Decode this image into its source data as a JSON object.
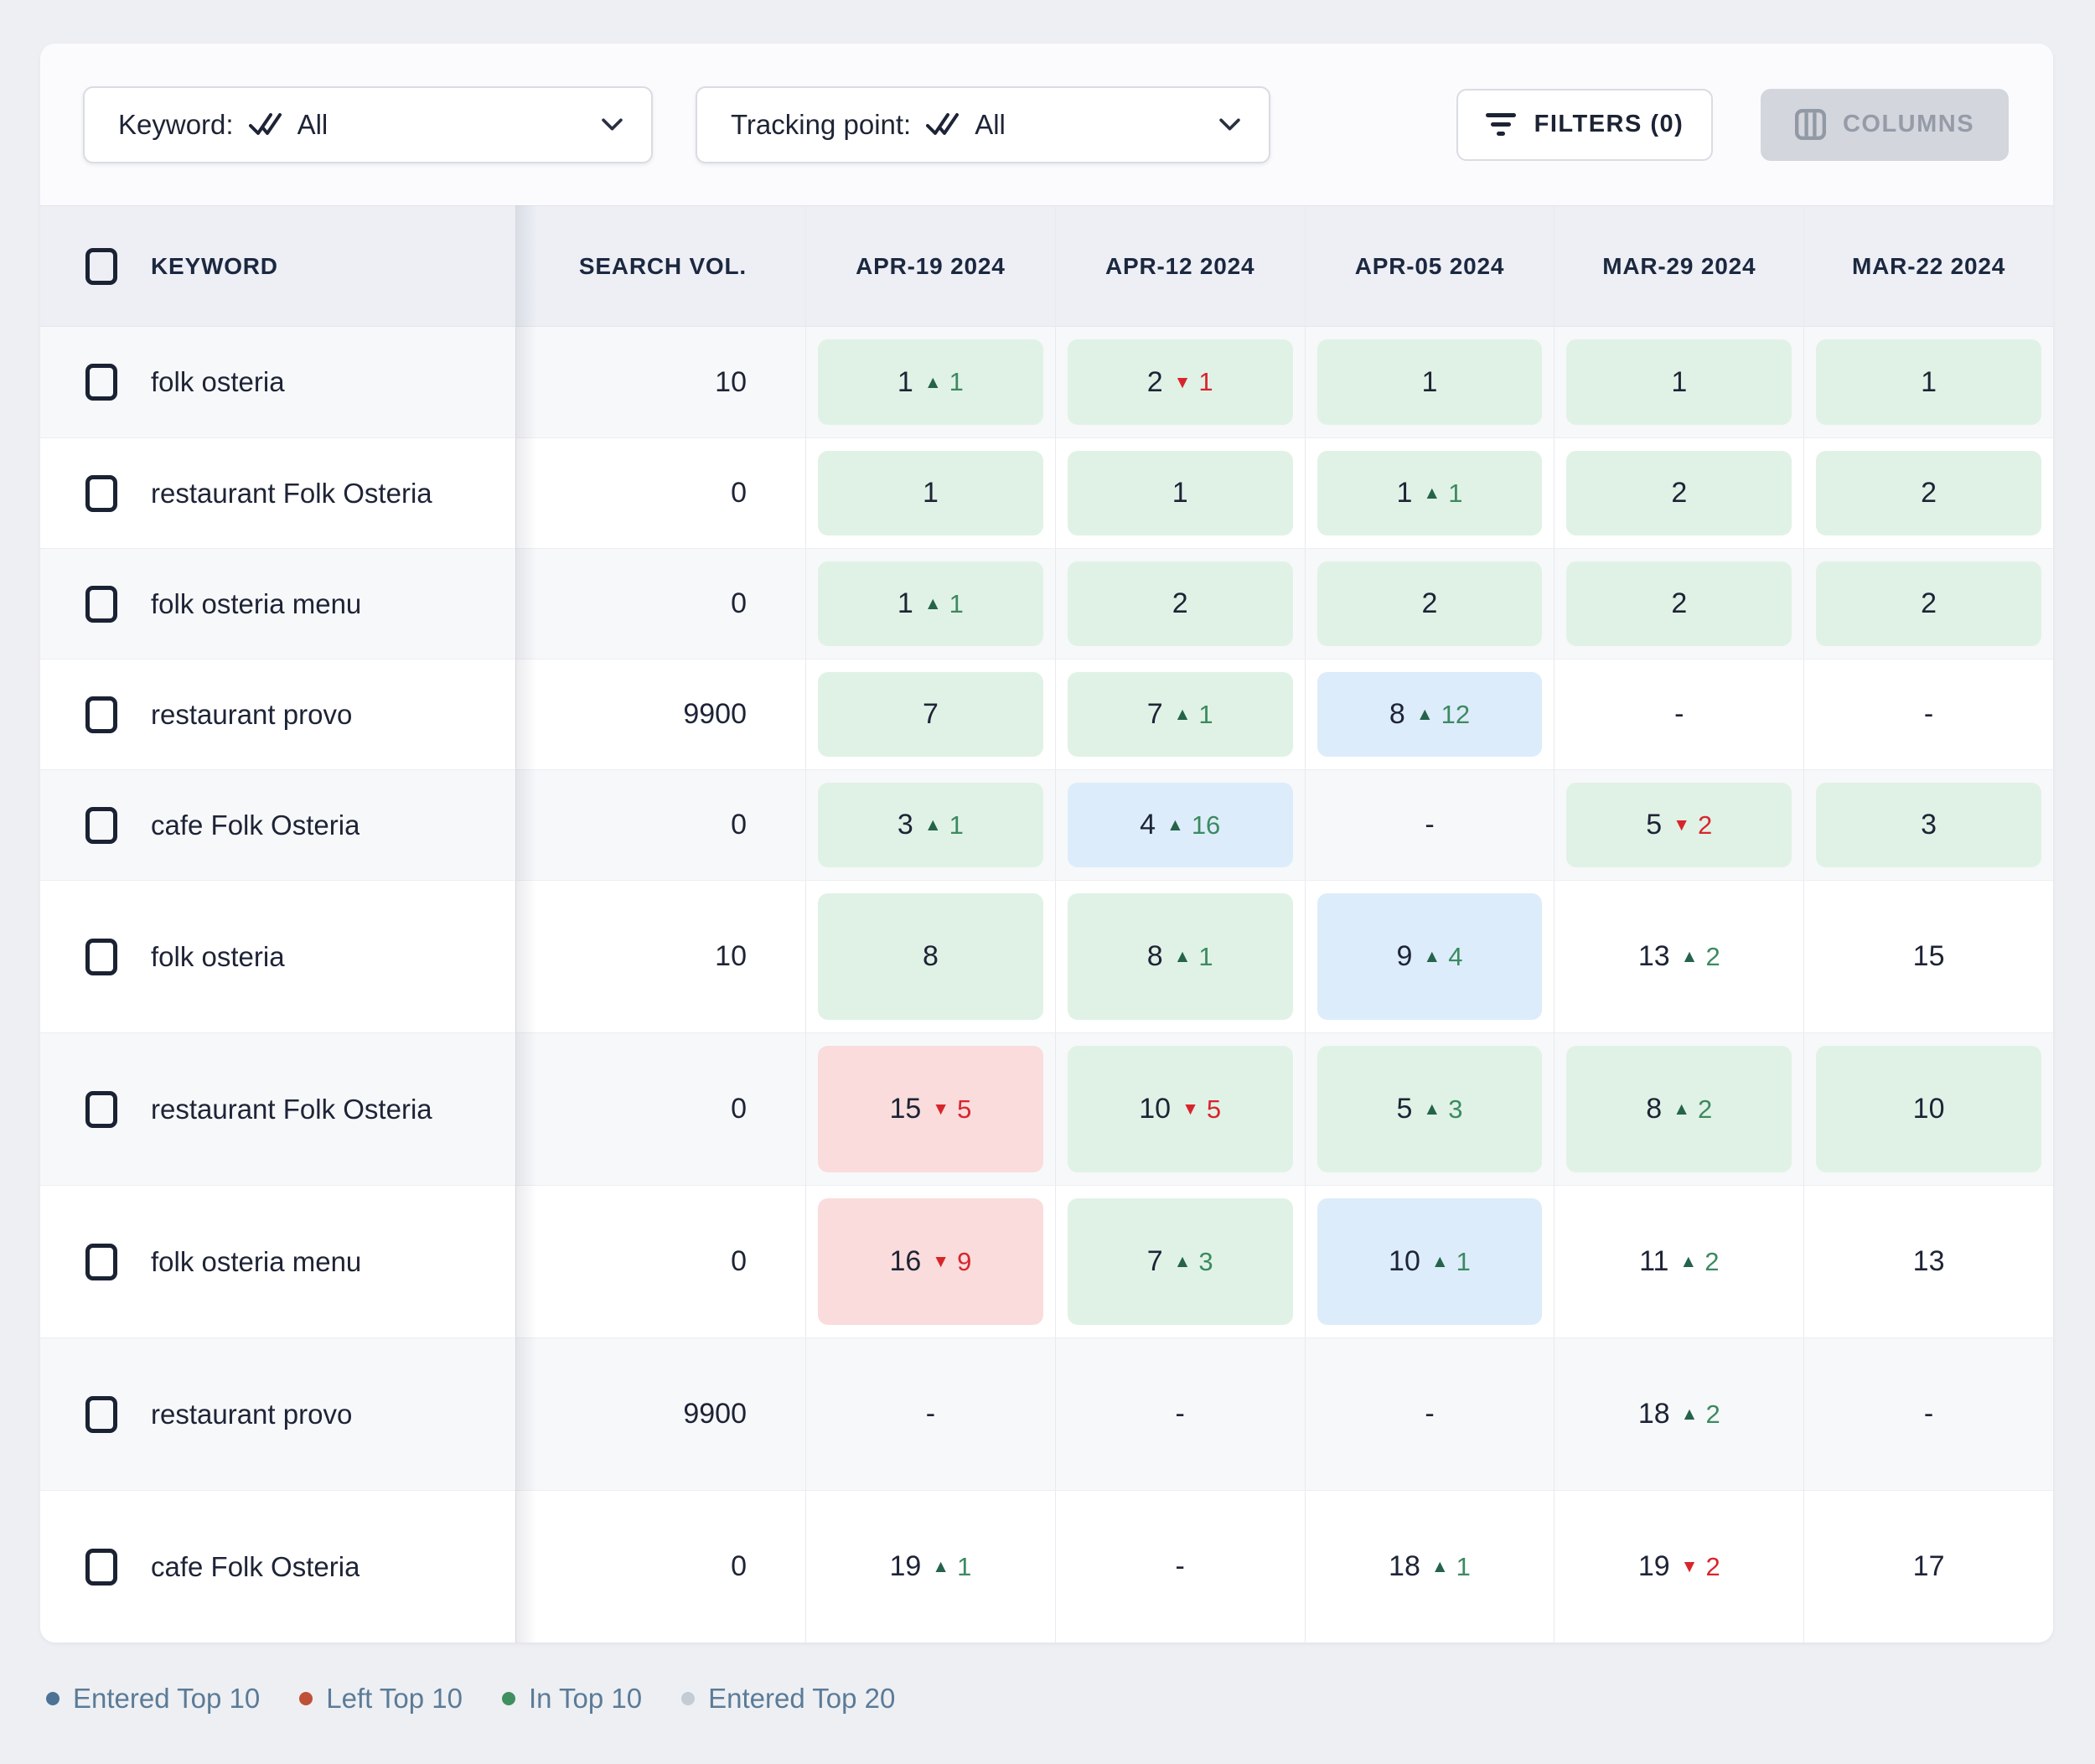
{
  "toolbar": {
    "keyword_filter": {
      "label": "Keyword:",
      "value": "All"
    },
    "tracking_point_filter": {
      "label": "Tracking point:",
      "value": "All"
    },
    "filters_label": "FILTERS (0)",
    "columns_label": "COLUMNS"
  },
  "icons": {
    "filter_value": "double-check-icon",
    "dropdown": "chevron-down-icon",
    "filters_button": "filter-lines-icon",
    "columns_button": "columns-icon",
    "rank_up": "triangle-up-icon",
    "rank_down": "triangle-down-icon"
  },
  "table": {
    "header": {
      "keyword": "KEYWORD",
      "search_vol": "SEARCH VOL.",
      "dates": [
        "APR-19 2024",
        "APR-12 2024",
        "APR-05 2024",
        "MAR-29 2024",
        "MAR-22 2024"
      ]
    },
    "rows": [
      {
        "keyword": "folk osteria",
        "search_vol": "10",
        "size": "short",
        "cells": [
          {
            "rank": "1",
            "delta": "1",
            "dir": "up",
            "bg": "green"
          },
          {
            "rank": "2",
            "delta": "1",
            "dir": "down",
            "bg": "green"
          },
          {
            "rank": "1",
            "bg": "green"
          },
          {
            "rank": "1",
            "bg": "green"
          },
          {
            "rank": "1",
            "bg": "green"
          }
        ]
      },
      {
        "keyword": "restaurant Folk Osteria",
        "search_vol": "0",
        "size": "short",
        "cells": [
          {
            "rank": "1",
            "bg": "green"
          },
          {
            "rank": "1",
            "bg": "green"
          },
          {
            "rank": "1",
            "delta": "1",
            "dir": "up",
            "bg": "green"
          },
          {
            "rank": "2",
            "bg": "green"
          },
          {
            "rank": "2",
            "bg": "green"
          }
        ]
      },
      {
        "keyword": "folk osteria menu",
        "search_vol": "0",
        "size": "short",
        "cells": [
          {
            "rank": "1",
            "delta": "1",
            "dir": "up",
            "bg": "green"
          },
          {
            "rank": "2",
            "bg": "green"
          },
          {
            "rank": "2",
            "bg": "green"
          },
          {
            "rank": "2",
            "bg": "green"
          },
          {
            "rank": "2",
            "bg": "green"
          }
        ]
      },
      {
        "keyword": "restaurant provo",
        "search_vol": "9900",
        "size": "short",
        "cells": [
          {
            "rank": "7",
            "bg": "green"
          },
          {
            "rank": "7",
            "delta": "1",
            "dir": "up",
            "bg": "green"
          },
          {
            "rank": "8",
            "delta": "12",
            "dir": "up",
            "bg": "blue"
          },
          {
            "rank": "-",
            "bg": "none"
          },
          {
            "rank": "-",
            "bg": "none"
          }
        ]
      },
      {
        "keyword": "cafe Folk Osteria",
        "search_vol": "0",
        "size": "short",
        "cells": [
          {
            "rank": "3",
            "delta": "1",
            "dir": "up",
            "bg": "green"
          },
          {
            "rank": "4",
            "delta": "16",
            "dir": "up",
            "bg": "blue"
          },
          {
            "rank": "-",
            "bg": "none"
          },
          {
            "rank": "5",
            "delta": "2",
            "dir": "down",
            "bg": "green"
          },
          {
            "rank": "3",
            "bg": "green"
          }
        ]
      },
      {
        "keyword": "folk osteria",
        "search_vol": "10",
        "size": "tall",
        "cells": [
          {
            "rank": "8",
            "bg": "green"
          },
          {
            "rank": "8",
            "delta": "1",
            "dir": "up",
            "bg": "green"
          },
          {
            "rank": "9",
            "delta": "4",
            "dir": "up",
            "bg": "blue"
          },
          {
            "rank": "13",
            "delta": "2",
            "dir": "up",
            "bg": "none"
          },
          {
            "rank": "15",
            "bg": "none"
          }
        ]
      },
      {
        "keyword": "restaurant Folk Osteria",
        "search_vol": "0",
        "size": "tall",
        "cells": [
          {
            "rank": "15",
            "delta": "5",
            "dir": "down",
            "bg": "red"
          },
          {
            "rank": "10",
            "delta": "5",
            "dir": "down",
            "bg": "green"
          },
          {
            "rank": "5",
            "delta": "3",
            "dir": "up",
            "bg": "green"
          },
          {
            "rank": "8",
            "delta": "2",
            "dir": "up",
            "bg": "green"
          },
          {
            "rank": "10",
            "bg": "green"
          }
        ]
      },
      {
        "keyword": "folk osteria menu",
        "search_vol": "0",
        "size": "tall",
        "cells": [
          {
            "rank": "16",
            "delta": "9",
            "dir": "down",
            "bg": "red"
          },
          {
            "rank": "7",
            "delta": "3",
            "dir": "up",
            "bg": "green"
          },
          {
            "rank": "10",
            "delta": "1",
            "dir": "up",
            "bg": "blue"
          },
          {
            "rank": "11",
            "delta": "2",
            "dir": "up",
            "bg": "none"
          },
          {
            "rank": "13",
            "bg": "none"
          }
        ]
      },
      {
        "keyword": "restaurant provo",
        "search_vol": "9900",
        "size": "tall",
        "cells": [
          {
            "rank": "-",
            "bg": "none"
          },
          {
            "rank": "-",
            "bg": "none"
          },
          {
            "rank": "-",
            "bg": "none"
          },
          {
            "rank": "18",
            "delta": "2",
            "dir": "up",
            "bg": "none"
          },
          {
            "rank": "-",
            "bg": "none"
          }
        ]
      },
      {
        "keyword": "cafe Folk Osteria",
        "search_vol": "0",
        "size": "tall",
        "cells": [
          {
            "rank": "19",
            "delta": "1",
            "dir": "up",
            "bg": "none"
          },
          {
            "rank": "-",
            "bg": "none"
          },
          {
            "rank": "18",
            "delta": "1",
            "dir": "up",
            "bg": "none"
          },
          {
            "rank": "19",
            "delta": "2",
            "dir": "down",
            "bg": "none"
          },
          {
            "rank": "17",
            "bg": "none"
          }
        ]
      }
    ]
  },
  "legend": {
    "items": [
      {
        "label": "Entered Top 10",
        "color": "#4d7296"
      },
      {
        "label": "Left Top 10",
        "color": "#bf5037"
      },
      {
        "label": "In Top 10",
        "color": "#3f8f60"
      },
      {
        "label": "Entered Top 20",
        "color": "#c3ccd4"
      }
    ]
  },
  "colors": {
    "cell_green": "#e0f2e6",
    "cell_blue": "#dcecfa",
    "cell_red": "#fadcdc",
    "delta_up_arrow": "#25634a",
    "delta_up_value": "#3c8a60",
    "delta_down": "#d8252c",
    "page_bg": "#edeff3",
    "header_bg": "#edeff5",
    "row_alt": "#f7f8fa",
    "text": "#1e2436",
    "legend_text": "#5b7b97"
  }
}
